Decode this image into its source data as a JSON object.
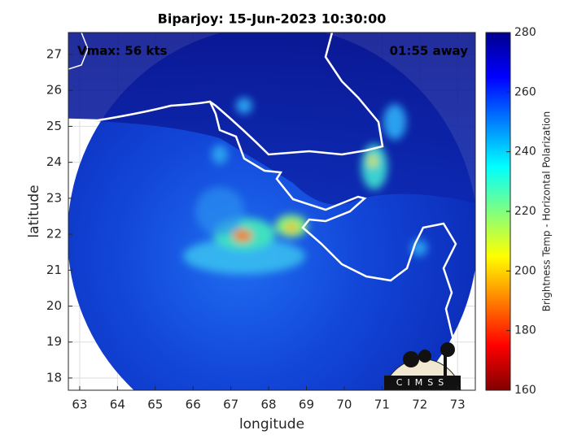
{
  "title": "Biparjoy: 15-Jun-2023 10:30:00",
  "annotations": {
    "left": "Vmax: 56 kts",
    "right": "01:55 away"
  },
  "axes": {
    "xlabel": "longitude",
    "ylabel": "latitude",
    "xlim": [
      62.7,
      73.47
    ],
    "xticks": [
      63,
      64,
      65,
      66,
      67,
      68,
      69,
      70,
      71,
      72,
      73
    ],
    "ylim": [
      17.66,
      27.61
    ],
    "yticks": [
      18,
      19,
      20,
      21,
      22,
      23,
      24,
      25,
      26,
      27
    ],
    "grid": true
  },
  "colorbar": {
    "label": "Brightness Temp - Horizontal Polarization",
    "lim": [
      160,
      280
    ],
    "ticks": [
      160,
      180,
      200,
      220,
      240,
      260,
      280
    ]
  },
  "logo": "CIMSS"
}
